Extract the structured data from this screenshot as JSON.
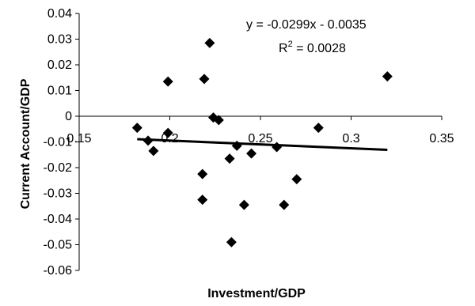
{
  "chart_data": {
    "type": "scatter",
    "xlabel": "Investment/GDP",
    "ylabel": "Current Account/GDP",
    "xlim": [
      0.15,
      0.35
    ],
    "ylim": [
      -0.06,
      0.04
    ],
    "x_ticks": [
      0.15,
      0.2,
      0.25,
      0.3,
      0.35
    ],
    "x_tick_labels": [
      "0.15",
      "0.2",
      "0.25",
      "0.3",
      "0.35"
    ],
    "y_ticks": [
      -0.06,
      -0.05,
      -0.04,
      -0.03,
      -0.02,
      -0.01,
      0,
      0.01,
      0.02,
      0.03,
      0.04
    ],
    "y_tick_labels": [
      "-0.06",
      "-0.05",
      "-0.04",
      "-0.03",
      "-0.02",
      "-0.01",
      "0",
      "0.01",
      "0.02",
      "0.03",
      "0.04"
    ],
    "x_axis_crosses_at": 0,
    "grid": false,
    "legend": "none",
    "marker": "diamond",
    "marker_color": "#000000",
    "points": [
      {
        "x": 0.182,
        "y": -0.0045
      },
      {
        "x": 0.188,
        "y": -0.0095
      },
      {
        "x": 0.191,
        "y": -0.0135
      },
      {
        "x": 0.199,
        "y": 0.0135
      },
      {
        "x": 0.199,
        "y": -0.0065
      },
      {
        "x": 0.219,
        "y": 0.0145
      },
      {
        "x": 0.222,
        "y": 0.0285
      },
      {
        "x": 0.224,
        "y": -0.0005
      },
      {
        "x": 0.227,
        "y": -0.0015
      },
      {
        "x": 0.218,
        "y": -0.0225
      },
      {
        "x": 0.218,
        "y": -0.0325
      },
      {
        "x": 0.233,
        "y": -0.0165
      },
      {
        "x": 0.237,
        "y": -0.0115
      },
      {
        "x": 0.245,
        "y": -0.0145
      },
      {
        "x": 0.241,
        "y": -0.0345
      },
      {
        "x": 0.234,
        "y": -0.049
      },
      {
        "x": 0.259,
        "y": -0.012
      },
      {
        "x": 0.263,
        "y": -0.0345
      },
      {
        "x": 0.27,
        "y": -0.0245
      },
      {
        "x": 0.282,
        "y": -0.0045
      },
      {
        "x": 0.32,
        "y": 0.0155
      }
    ],
    "trendline": {
      "type": "linear",
      "slope": -0.0299,
      "intercept": -0.0035,
      "x_range": [
        0.182,
        0.32
      ],
      "color": "#000000",
      "equation_label": "y = -0.0299x - 0.0035",
      "r2_prefix": "R",
      "r2_superscript": "2",
      "r2_value_label": " = 0.0028"
    }
  }
}
